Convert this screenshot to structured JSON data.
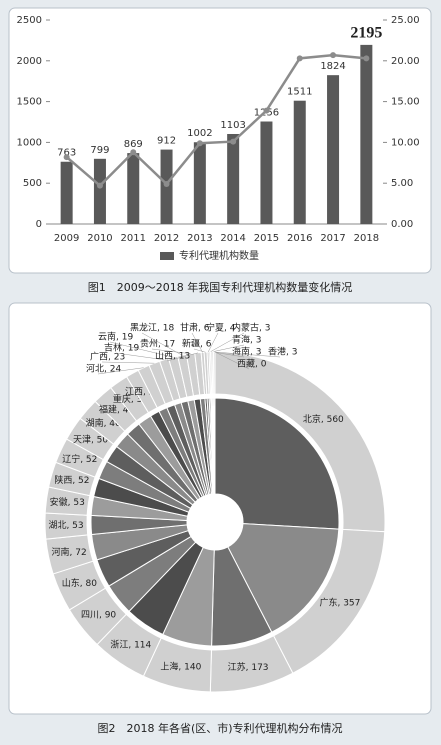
{
  "chart_data": [
    {
      "type": "bar",
      "caption": "图1　2009～2018 年我国专利代理机构数量变化情况",
      "categories": [
        "2009",
        "2010",
        "2011",
        "2012",
        "2013",
        "2014",
        "2015",
        "2016",
        "2017",
        "2018"
      ],
      "series": [
        {
          "name": "专利代理机构数量",
          "color": "#595959",
          "values": [
            763,
            799,
            869,
            912,
            1002,
            1103,
            1256,
            1511,
            1824,
            2195
          ]
        },
        {
          "type": "line",
          "axis": "y2",
          "color": "#8c8c8c",
          "values": [
            8.2,
            4.7,
            8.8,
            4.9,
            9.9,
            10.1,
            13.9,
            20.3,
            20.7,
            20.3
          ]
        }
      ],
      "ylim": [
        0,
        2500
      ],
      "yticks": [
        0,
        500,
        1000,
        1500,
        2000,
        2500
      ],
      "y2lim": [
        0,
        25
      ],
      "y2ticks": [
        {
          "value": 0,
          "label": "0.00"
        },
        {
          "value": 5,
          "label": "5.00"
        },
        {
          "value": 10,
          "label": "10.00"
        },
        {
          "value": 15,
          "label": "15.00"
        },
        {
          "value": 20,
          "label": "20.00"
        },
        {
          "value": 25,
          "label": "25.00"
        }
      ],
      "legend": "bottom"
    },
    {
      "type": "pie",
      "caption": "图2　2018 年各省(区、市)专利代理机构分布情况",
      "categories": [
        "北京",
        "广东",
        "江苏",
        "上海",
        "浙江",
        "四川",
        "山东",
        "河南",
        "湖北",
        "安徽",
        "陕西",
        "辽宁",
        "天津",
        "湖南",
        "福建",
        "重庆",
        "江西",
        "河北",
        "广西",
        "吉林",
        "云南",
        "黑龙江",
        "贵州",
        "山西",
        "甘肃",
        "新疆",
        "宁夏",
        "内蒙古",
        "青海",
        "海南",
        "香港",
        "西藏"
      ],
      "values": [
        560,
        357,
        173,
        140,
        114,
        90,
        80,
        72,
        53,
        53,
        52,
        52,
        50,
        46,
        42,
        39,
        27,
        24,
        23,
        19,
        19,
        18,
        17,
        13,
        6,
        6,
        4,
        3,
        3,
        3,
        3,
        0
      ],
      "value_labels": [
        "北京, 560",
        "广东, 357",
        "江苏, 173",
        "上海, 140",
        "浙江, 114",
        "四川, 90",
        "山东, 80",
        "河南, 72",
        "湖北, 53",
        "安徽, 53",
        "陕西, 52",
        "辽宁, 52",
        "天津, 50",
        "湖南, 46",
        "福建, 42",
        "重庆, 39",
        "江西, 27",
        "河北, 24",
        "广西, 23",
        "吉林, 19",
        "云南, 19",
        "黑龙江, 18",
        "贵州, 17",
        "山西, 13",
        "甘肃, 6",
        "新疆, 6",
        "宁夏, 4",
        "内蒙古, 3",
        "青海, 3",
        "海南, 3",
        "香港, 3",
        "西藏, 0"
      ],
      "ring_color": "#d0d0d0",
      "colors": [
        "#5e5e5e",
        "#8a8a8a",
        "#6f6f6f",
        "#9c9c9c",
        "#4c4c4c",
        "#7d7d7d"
      ]
    }
  ]
}
